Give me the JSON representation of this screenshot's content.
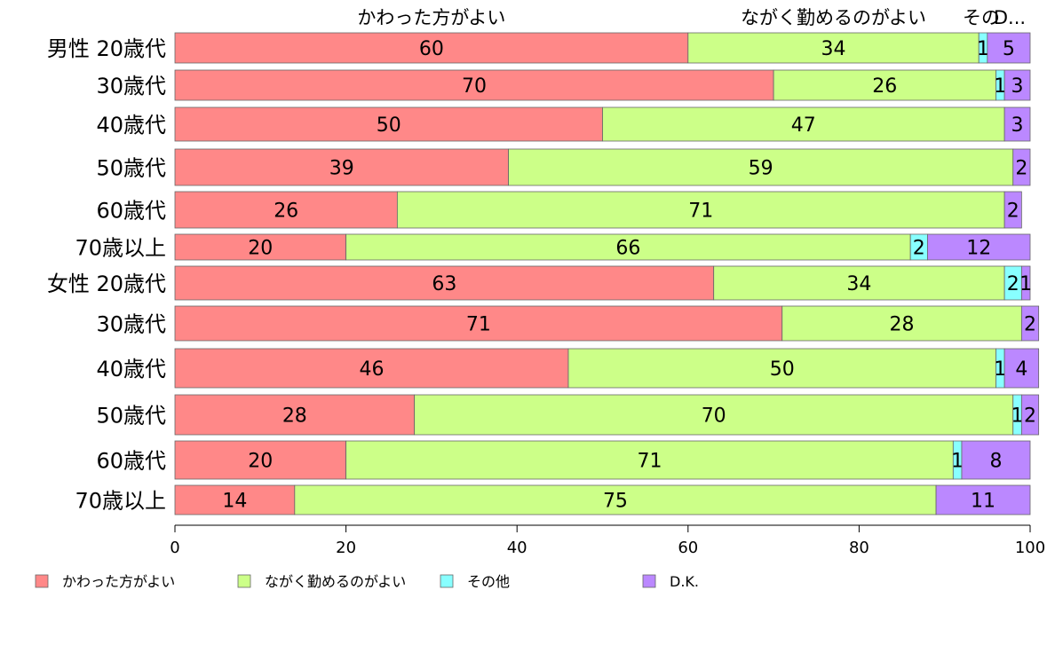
{
  "chart_data": {
    "type": "bar",
    "orientation": "horizontal",
    "stacked": true,
    "categories": [
      "男性 20歳代",
      "30歳代",
      "40歳代",
      "50歳代",
      "60歳代",
      "70歳以上",
      "女性 20歳代",
      "30歳代",
      "40歳代",
      "50歳代",
      "60歳代",
      "70歳以上"
    ],
    "series": [
      {
        "name": "かわった方がよい",
        "color": "#ff8888",
        "values": [
          60,
          70,
          50,
          39,
          26,
          20,
          63,
          71,
          46,
          28,
          20,
          14
        ]
      },
      {
        "name": "ながく勤めるのがよい",
        "color": "#ccff88",
        "values": [
          34,
          26,
          47,
          59,
          71,
          66,
          34,
          28,
          50,
          70,
          71,
          75
        ]
      },
      {
        "name": "その他",
        "color": "#88ffff",
        "values": [
          1,
          1,
          0,
          0,
          0,
          2,
          2,
          0,
          1,
          1,
          1,
          0
        ]
      },
      {
        "name": "D.K.",
        "color": "#bb88ff",
        "values": [
          5,
          3,
          3,
          2,
          2,
          12,
          1,
          2,
          4,
          2,
          8,
          11
        ]
      }
    ],
    "xlim": [
      0,
      100
    ],
    "xticks": [
      "0",
      "20",
      "40",
      "60",
      "80",
      "100"
    ],
    "top_labels": [
      "かわった方がよい",
      "ながく勤めるのがよい",
      "その",
      "D..."
    ],
    "legend": {
      "position": "bottom-left",
      "entries": [
        "かわった方がよい",
        "ながく勤めるのがよい",
        "その他",
        "D.K."
      ]
    },
    "grid": false
  }
}
